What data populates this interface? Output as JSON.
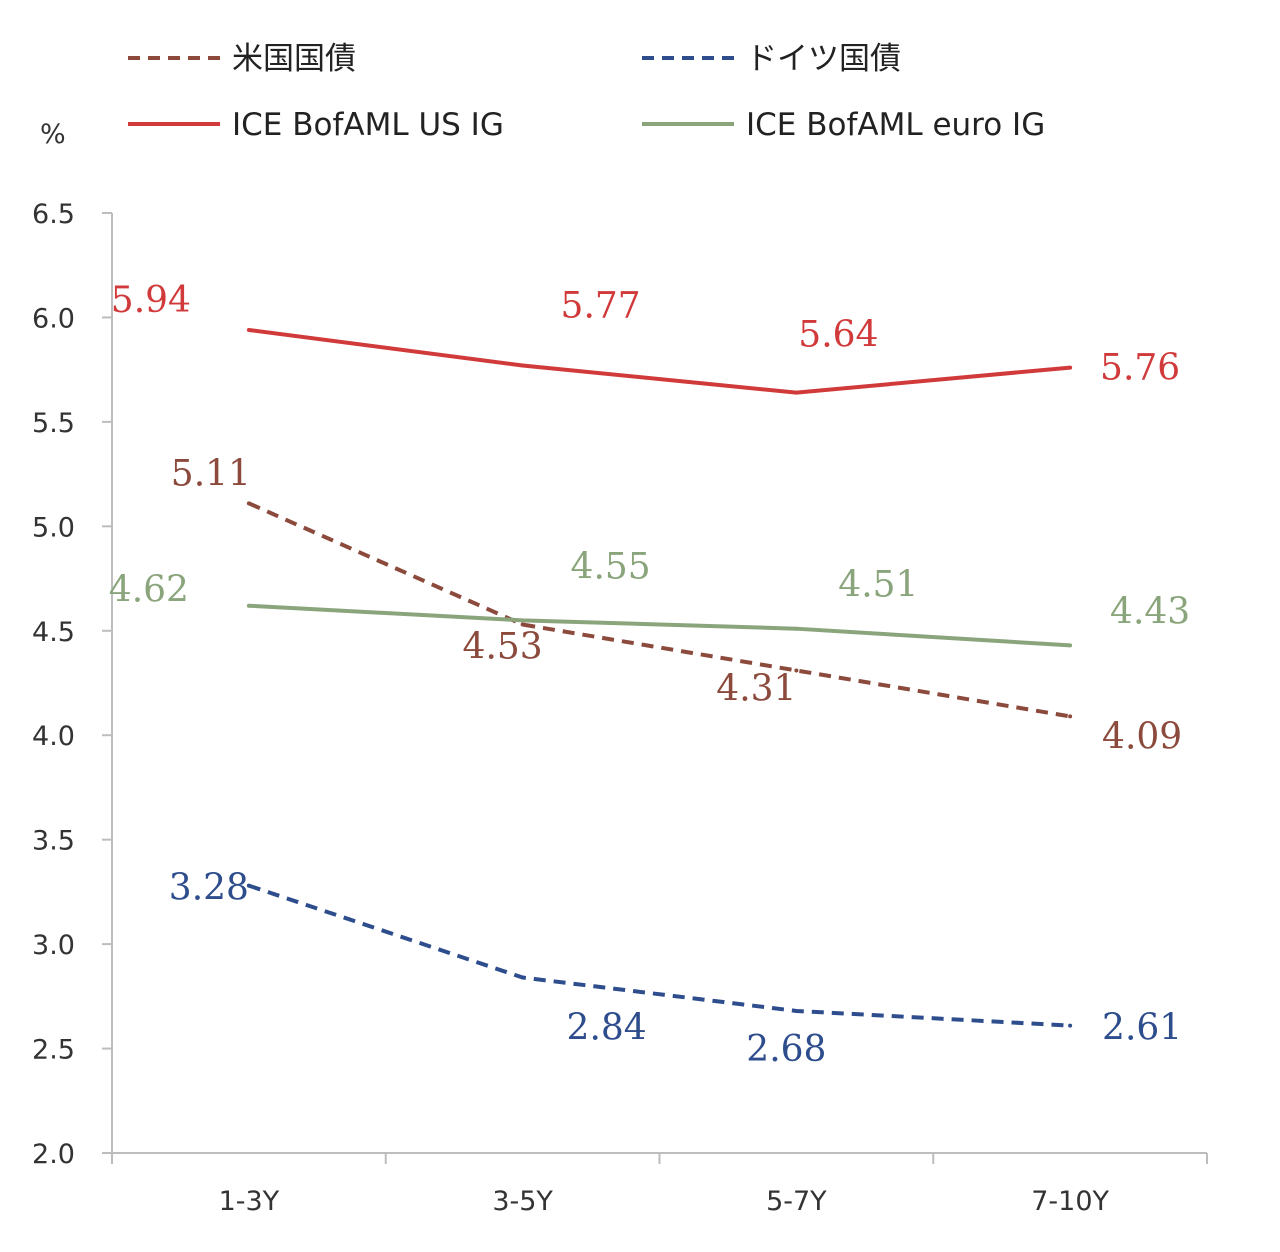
{
  "chart_data": {
    "type": "line",
    "ylabel": "%",
    "xlabel": "",
    "title": "",
    "categories": [
      "1-3Y",
      "3-5Y",
      "5-7Y",
      "7-10Y"
    ],
    "y_ticks": [
      "6.5",
      "6.0",
      "5.5",
      "5.0",
      "4.5",
      "4.0",
      "3.5",
      "3.0",
      "2.5",
      "2.0"
    ],
    "ylim": [
      2.0,
      6.5
    ],
    "grid": false,
    "legend_position": "top",
    "series": [
      {
        "name": "米国国債",
        "values": [
          5.11,
          4.53,
          4.31,
          4.09
        ],
        "labels": [
          "5.11",
          "4.53",
          "4.31",
          "4.09"
        ],
        "color": "#8B4A3C",
        "style": "dashed"
      },
      {
        "name": "ドイツ国債",
        "values": [
          3.28,
          2.84,
          2.68,
          2.61
        ],
        "labels": [
          "3.28",
          "2.84",
          "2.68",
          "2.61"
        ],
        "color": "#2E4D8C",
        "style": "dashed"
      },
      {
        "name": "ICE BofAML US IG",
        "values": [
          5.94,
          5.77,
          5.64,
          5.76
        ],
        "labels": [
          "5.94",
          "5.77",
          "5.64",
          "5.76"
        ],
        "color": "#D13A3A",
        "style": "solid"
      },
      {
        "name": "ICE BofAML euro IG",
        "values": [
          4.62,
          4.55,
          4.51,
          4.43
        ],
        "labels": [
          "4.62",
          "4.55",
          "4.51",
          "4.43"
        ],
        "color": "#8AA57B",
        "style": "solid"
      }
    ]
  }
}
